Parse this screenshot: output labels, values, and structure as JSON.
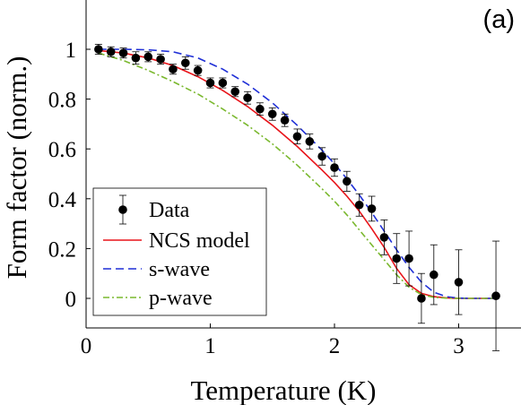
{
  "chart_data": {
    "type": "scatter",
    "panel_label": "(a)",
    "xlabel": "Temperature (K)",
    "ylabel": "Form factor (norm.)",
    "xlim": [
      0,
      3.5
    ],
    "ylim": [
      -0.1,
      1.15
    ],
    "xticks": [
      0,
      1,
      2,
      3
    ],
    "yticks": [
      0,
      0.2,
      0.4,
      0.6,
      0.8,
      1
    ],
    "xtick_labels": [
      "0",
      "1",
      "2",
      "3"
    ],
    "ytick_labels": [
      "0",
      "0.2",
      "0.4",
      "0.6",
      "0.8",
      "1"
    ],
    "grid": false,
    "legend_position": "bottom-left",
    "legend": [
      "Data",
      "NCS model",
      "s-wave",
      "p-wave"
    ],
    "colors": {
      "data": "#000000",
      "ncs_model": "#e8141a",
      "s_wave": "#1f2fd6",
      "p_wave": "#7ab82e",
      "axis": "#000000"
    },
    "series": [
      {
        "name": "Data",
        "kind": "errorbar",
        "x": [
          0.1,
          0.2,
          0.3,
          0.4,
          0.5,
          0.6,
          0.7,
          0.8,
          0.9,
          1.0,
          1.1,
          1.2,
          1.3,
          1.4,
          1.5,
          1.6,
          1.7,
          1.8,
          1.9,
          2.0,
          2.1,
          2.2,
          2.3,
          2.4,
          2.5,
          2.6,
          2.7,
          2.8,
          3.0,
          3.3
        ],
        "y": [
          1.0,
          0.99,
          0.985,
          0.965,
          0.97,
          0.96,
          0.92,
          0.945,
          0.915,
          0.865,
          0.865,
          0.83,
          0.805,
          0.76,
          0.74,
          0.715,
          0.65,
          0.63,
          0.57,
          0.525,
          0.47,
          0.375,
          0.36,
          0.245,
          0.16,
          0.16,
          0.0,
          0.095,
          0.065,
          0.01
        ],
        "err": [
          0.02,
          0.02,
          0.02,
          0.025,
          0.02,
          0.02,
          0.02,
          0.025,
          0.02,
          0.02,
          0.02,
          0.02,
          0.025,
          0.025,
          0.025,
          0.025,
          0.03,
          0.03,
          0.035,
          0.035,
          0.04,
          0.045,
          0.05,
          0.07,
          0.1,
          0.11,
          0.1,
          0.12,
          0.13,
          0.22
        ]
      },
      {
        "name": "NCS model",
        "kind": "line",
        "x": [
          0.1,
          0.3,
          0.5,
          0.7,
          0.9,
          1.1,
          1.3,
          1.5,
          1.7,
          1.9,
          2.0,
          2.1,
          2.2,
          2.3,
          2.4,
          2.5,
          2.6,
          2.7,
          2.8,
          2.9,
          3.0,
          3.1,
          3.2,
          3.3
        ],
        "y": [
          0.995,
          0.985,
          0.965,
          0.935,
          0.89,
          0.835,
          0.77,
          0.695,
          0.61,
          0.515,
          0.465,
          0.41,
          0.35,
          0.28,
          0.205,
          0.12,
          0.055,
          0.02,
          0.007,
          0.002,
          0.0,
          0.0,
          0.0,
          0.0
        ]
      },
      {
        "name": "s-wave",
        "kind": "line",
        "x": [
          0.1,
          0.3,
          0.5,
          0.7,
          0.9,
          1.1,
          1.3,
          1.5,
          1.7,
          1.9,
          2.0,
          2.1,
          2.2,
          2.3,
          2.4,
          2.5,
          2.6,
          2.7,
          2.8,
          2.9,
          3.0,
          3.1,
          3.2,
          3.3
        ],
        "y": [
          1.0,
          1.0,
          0.998,
          0.99,
          0.965,
          0.92,
          0.86,
          0.785,
          0.695,
          0.595,
          0.54,
          0.48,
          0.415,
          0.345,
          0.27,
          0.195,
          0.125,
          0.065,
          0.025,
          0.007,
          0.001,
          0.0,
          0.0,
          0.0
        ]
      },
      {
        "name": "p-wave",
        "kind": "line",
        "x": [
          0.1,
          0.3,
          0.5,
          0.7,
          0.9,
          1.1,
          1.3,
          1.5,
          1.7,
          1.9,
          2.0,
          2.1,
          2.2,
          2.3,
          2.4,
          2.5,
          2.6,
          2.7,
          2.8,
          2.9,
          3.0,
          3.1,
          3.2,
          3.3
        ],
        "y": [
          0.985,
          0.955,
          0.915,
          0.87,
          0.82,
          0.76,
          0.695,
          0.62,
          0.535,
          0.44,
          0.39,
          0.335,
          0.275,
          0.215,
          0.155,
          0.095,
          0.045,
          0.015,
          0.004,
          0.001,
          0.0,
          0.0,
          0.0,
          0.0
        ]
      }
    ]
  }
}
